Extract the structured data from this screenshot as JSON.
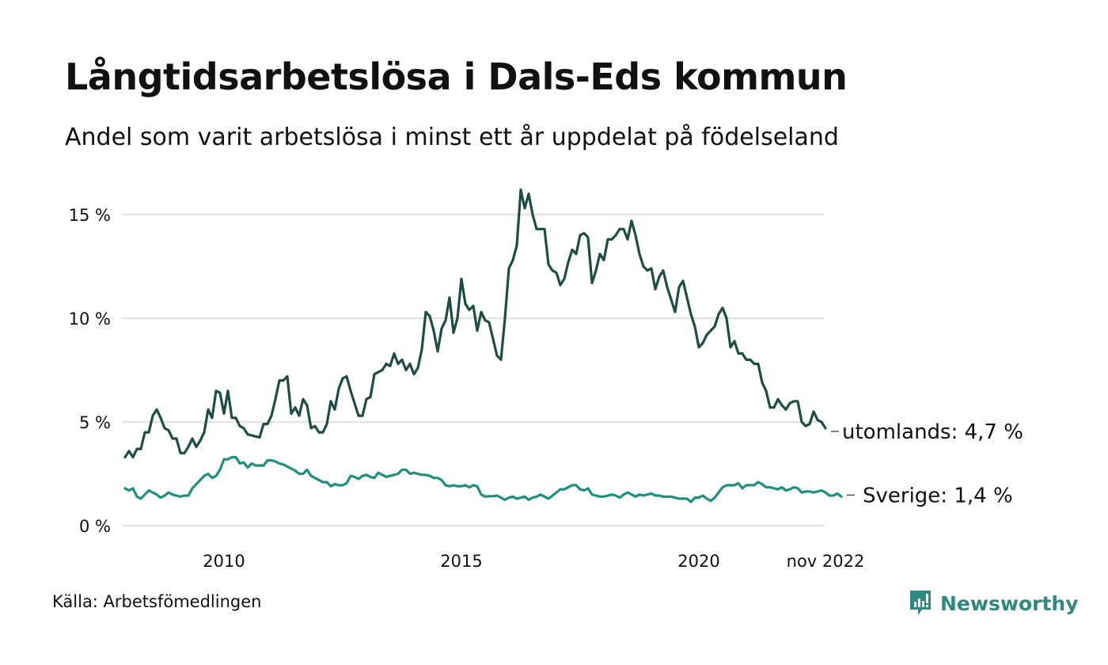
{
  "header": {
    "title": "Långtidsarbetslösa i Dals-Eds kommun",
    "subtitle": "Andel som varit arbetslösa i minst ett år uppdelat på födelseland"
  },
  "footer": {
    "source": "Källa: Arbetsfömedlingen",
    "brand": "Newsworthy"
  },
  "colors": {
    "utomlands": "#1e4d42",
    "sverige": "#1f8f7f",
    "grid": "#e3e3e3",
    "brand": "#2e8a7e"
  },
  "chart_data": {
    "type": "line",
    "title": "Långtidsarbetslösa i Dals-Eds kommun",
    "subtitle": "Andel som varit arbetslösa i minst ett år uppdelat på födelseland",
    "xlabel": "",
    "ylabel": "",
    "x_start": "2008-01",
    "x_end": "2022-11",
    "x_ticks": [
      {
        "year": 2010,
        "label": "2010"
      },
      {
        "year": 2015,
        "label": "2015"
      },
      {
        "year": 2020,
        "label": "2020"
      },
      {
        "year": 2022.833,
        "label": "nov 2022"
      }
    ],
    "ylim": [
      0,
      16
    ],
    "y_ticks": [
      {
        "value": 0,
        "label": "0 %"
      },
      {
        "value": 5,
        "label": "5 %"
      },
      {
        "value": 10,
        "label": "10 %"
      },
      {
        "value": 15,
        "label": "15 %"
      }
    ],
    "grid": true,
    "legend": "end-of-line labels (right)",
    "series": [
      {
        "name": "utomlands",
        "end_label": "utomlands: 4,7 %",
        "values": [
          3.3,
          3.6,
          3.3,
          3.7,
          3.7,
          4.5,
          4.5,
          5.3,
          5.6,
          5.2,
          4.7,
          4.6,
          4.2,
          4.2,
          3.5,
          3.5,
          3.8,
          4.2,
          3.8,
          4.1,
          4.5,
          5.6,
          5.2,
          6.5,
          6.4,
          5.4,
          6.5,
          5.2,
          5.2,
          4.8,
          4.7,
          4.4,
          4.35,
          4.3,
          4.25,
          4.9,
          4.9,
          5.3,
          6.1,
          7.0,
          7.0,
          7.2,
          5.4,
          5.7,
          5.3,
          6.1,
          5.8,
          4.7,
          4.8,
          4.5,
          4.5,
          4.9,
          6.0,
          5.6,
          6.6,
          7.1,
          7.2,
          6.5,
          5.9,
          5.3,
          5.3,
          6.1,
          6.2,
          7.3,
          7.4,
          7.5,
          7.8,
          7.7,
          8.3,
          7.8,
          8.0,
          7.5,
          7.8,
          7.3,
          7.6,
          8.5,
          10.3,
          10.1,
          9.4,
          8.4,
          9.5,
          9.9,
          11.0,
          9.3,
          10.0,
          11.9,
          10.7,
          10.4,
          10.6,
          9.4,
          10.3,
          9.9,
          9.8,
          9.0,
          8.2,
          8.0,
          10.0,
          12.4,
          12.8,
          13.5,
          16.2,
          15.3,
          16.0,
          15.0,
          14.3,
          14.3,
          14.3,
          12.6,
          12.3,
          12.2,
          11.6,
          11.9,
          12.7,
          13.3,
          13.1,
          14.0,
          14.1,
          13.9,
          11.7,
          12.3,
          13.1,
          12.8,
          13.8,
          13.8,
          14.0,
          14.3,
          14.3,
          13.8,
          14.7,
          14.0,
          13.1,
          12.5,
          12.3,
          12.4,
          11.4,
          12.0,
          12.3,
          11.5,
          10.9,
          10.3,
          11.5,
          11.8,
          11.0,
          10.2,
          9.6,
          8.6,
          8.8,
          9.2,
          9.4,
          9.6,
          10.2,
          10.5,
          10.0,
          8.6,
          8.9,
          8.3,
          8.3,
          8.0,
          8.0,
          7.8,
          7.8,
          6.9,
          6.5,
          5.7,
          5.7,
          6.1,
          5.8,
          5.6,
          5.9,
          6.0,
          6.0,
          5.0,
          4.8,
          4.9,
          5.5,
          5.1,
          5.0,
          4.7
        ],
        "color": "#1e4d42"
      },
      {
        "name": "Sverige",
        "end_label": "Sverige: 1,4 %",
        "values": [
          1.8,
          1.7,
          1.8,
          1.4,
          1.3,
          1.5,
          1.7,
          1.6,
          1.5,
          1.35,
          1.45,
          1.6,
          1.5,
          1.45,
          1.4,
          1.45,
          1.45,
          1.8,
          2.0,
          2.2,
          2.4,
          2.5,
          2.3,
          2.4,
          2.7,
          3.2,
          3.2,
          3.3,
          3.3,
          3.0,
          3.05,
          2.8,
          3.0,
          2.9,
          2.9,
          2.9,
          3.15,
          3.15,
          3.1,
          3.0,
          2.95,
          2.85,
          2.75,
          2.65,
          2.5,
          2.5,
          2.7,
          2.4,
          2.3,
          2.2,
          2.1,
          2.1,
          1.9,
          2.0,
          1.95,
          1.95,
          2.05,
          2.4,
          2.35,
          2.25,
          2.4,
          2.45,
          2.35,
          2.3,
          2.55,
          2.45,
          2.35,
          2.4,
          2.45,
          2.5,
          2.7,
          2.7,
          2.5,
          2.55,
          2.5,
          2.45,
          2.45,
          2.4,
          2.3,
          2.3,
          2.2,
          1.95,
          1.9,
          1.95,
          1.9,
          1.9,
          1.95,
          1.85,
          1.95,
          1.9,
          1.5,
          1.4,
          1.42,
          1.42,
          1.45,
          1.35,
          1.25,
          1.35,
          1.4,
          1.3,
          1.35,
          1.4,
          1.25,
          1.35,
          1.4,
          1.5,
          1.4,
          1.3,
          1.45,
          1.6,
          1.75,
          1.75,
          1.85,
          1.95,
          1.95,
          1.75,
          1.7,
          1.8,
          1.5,
          1.45,
          1.4,
          1.4,
          1.45,
          1.5,
          1.45,
          1.35,
          1.5,
          1.6,
          1.5,
          1.4,
          1.5,
          1.45,
          1.5,
          1.55,
          1.45,
          1.45,
          1.4,
          1.4,
          1.4,
          1.35,
          1.3,
          1.3,
          1.3,
          1.15,
          1.35,
          1.35,
          1.45,
          1.3,
          1.2,
          1.35,
          1.6,
          1.85,
          1.95,
          1.95,
          1.95,
          2.05,
          1.8,
          1.95,
          1.95,
          1.95,
          2.1,
          2.0,
          1.85,
          1.85,
          1.8,
          1.75,
          1.85,
          1.7,
          1.75,
          1.85,
          1.8,
          1.6,
          1.65,
          1.65,
          1.6,
          1.65,
          1.7,
          1.6,
          1.45,
          1.45,
          1.55,
          1.4
        ],
        "color": "#1f8f7f"
      }
    ]
  }
}
